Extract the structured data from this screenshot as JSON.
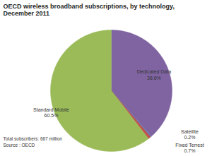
{
  "chart_data": {
    "type": "pie",
    "title": "OECD wireless broadband subscriptions, by technology, December 2011",
    "categories": [
      "Dedicated Data",
      "Satellite",
      "Fixed Terrest",
      "Standard Mobile"
    ],
    "values": [
      38.6,
      0.2,
      0.7,
      60.5
    ],
    "value_labels": [
      "38.6%",
      "0.2%",
      "0.7%",
      "60.5%"
    ],
    "colors": [
      "#8064a2",
      "#4f81bd",
      "#c0504d",
      "#9bbb59"
    ],
    "data_labels": true,
    "annotations": [
      "Total subscribers: 667 million",
      "Source : OECD"
    ]
  }
}
